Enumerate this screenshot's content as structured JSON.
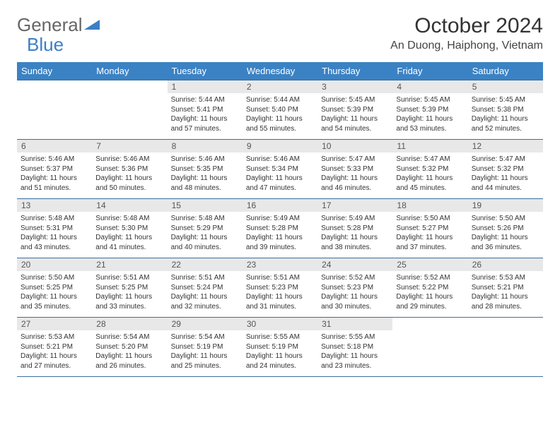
{
  "logo": {
    "text_general": "General",
    "text_blue": "Blue"
  },
  "header": {
    "month_title": "October 2024",
    "location": "An Duong, Haiphong, Vietnam"
  },
  "calendar": {
    "type": "table",
    "header_bg": "#3b82c4",
    "header_fg": "#ffffff",
    "daynum_bg": "#e8e8e8",
    "border_color": "#3b6fa0",
    "columns": [
      "Sunday",
      "Monday",
      "Tuesday",
      "Wednesday",
      "Thursday",
      "Friday",
      "Saturday"
    ],
    "weeks": [
      [
        {
          "day": "",
          "sunrise": "",
          "sunset": "",
          "daylight1": "",
          "daylight2": ""
        },
        {
          "day": "",
          "sunrise": "",
          "sunset": "",
          "daylight1": "",
          "daylight2": ""
        },
        {
          "day": "1",
          "sunrise": "Sunrise: 5:44 AM",
          "sunset": "Sunset: 5:41 PM",
          "daylight1": "Daylight: 11 hours",
          "daylight2": "and 57 minutes."
        },
        {
          "day": "2",
          "sunrise": "Sunrise: 5:44 AM",
          "sunset": "Sunset: 5:40 PM",
          "daylight1": "Daylight: 11 hours",
          "daylight2": "and 55 minutes."
        },
        {
          "day": "3",
          "sunrise": "Sunrise: 5:45 AM",
          "sunset": "Sunset: 5:39 PM",
          "daylight1": "Daylight: 11 hours",
          "daylight2": "and 54 minutes."
        },
        {
          "day": "4",
          "sunrise": "Sunrise: 5:45 AM",
          "sunset": "Sunset: 5:39 PM",
          "daylight1": "Daylight: 11 hours",
          "daylight2": "and 53 minutes."
        },
        {
          "day": "5",
          "sunrise": "Sunrise: 5:45 AM",
          "sunset": "Sunset: 5:38 PM",
          "daylight1": "Daylight: 11 hours",
          "daylight2": "and 52 minutes."
        }
      ],
      [
        {
          "day": "6",
          "sunrise": "Sunrise: 5:46 AM",
          "sunset": "Sunset: 5:37 PM",
          "daylight1": "Daylight: 11 hours",
          "daylight2": "and 51 minutes."
        },
        {
          "day": "7",
          "sunrise": "Sunrise: 5:46 AM",
          "sunset": "Sunset: 5:36 PM",
          "daylight1": "Daylight: 11 hours",
          "daylight2": "and 50 minutes."
        },
        {
          "day": "8",
          "sunrise": "Sunrise: 5:46 AM",
          "sunset": "Sunset: 5:35 PM",
          "daylight1": "Daylight: 11 hours",
          "daylight2": "and 48 minutes."
        },
        {
          "day": "9",
          "sunrise": "Sunrise: 5:46 AM",
          "sunset": "Sunset: 5:34 PM",
          "daylight1": "Daylight: 11 hours",
          "daylight2": "and 47 minutes."
        },
        {
          "day": "10",
          "sunrise": "Sunrise: 5:47 AM",
          "sunset": "Sunset: 5:33 PM",
          "daylight1": "Daylight: 11 hours",
          "daylight2": "and 46 minutes."
        },
        {
          "day": "11",
          "sunrise": "Sunrise: 5:47 AM",
          "sunset": "Sunset: 5:32 PM",
          "daylight1": "Daylight: 11 hours",
          "daylight2": "and 45 minutes."
        },
        {
          "day": "12",
          "sunrise": "Sunrise: 5:47 AM",
          "sunset": "Sunset: 5:32 PM",
          "daylight1": "Daylight: 11 hours",
          "daylight2": "and 44 minutes."
        }
      ],
      [
        {
          "day": "13",
          "sunrise": "Sunrise: 5:48 AM",
          "sunset": "Sunset: 5:31 PM",
          "daylight1": "Daylight: 11 hours",
          "daylight2": "and 43 minutes."
        },
        {
          "day": "14",
          "sunrise": "Sunrise: 5:48 AM",
          "sunset": "Sunset: 5:30 PM",
          "daylight1": "Daylight: 11 hours",
          "daylight2": "and 41 minutes."
        },
        {
          "day": "15",
          "sunrise": "Sunrise: 5:48 AM",
          "sunset": "Sunset: 5:29 PM",
          "daylight1": "Daylight: 11 hours",
          "daylight2": "and 40 minutes."
        },
        {
          "day": "16",
          "sunrise": "Sunrise: 5:49 AM",
          "sunset": "Sunset: 5:28 PM",
          "daylight1": "Daylight: 11 hours",
          "daylight2": "and 39 minutes."
        },
        {
          "day": "17",
          "sunrise": "Sunrise: 5:49 AM",
          "sunset": "Sunset: 5:28 PM",
          "daylight1": "Daylight: 11 hours",
          "daylight2": "and 38 minutes."
        },
        {
          "day": "18",
          "sunrise": "Sunrise: 5:50 AM",
          "sunset": "Sunset: 5:27 PM",
          "daylight1": "Daylight: 11 hours",
          "daylight2": "and 37 minutes."
        },
        {
          "day": "19",
          "sunrise": "Sunrise: 5:50 AM",
          "sunset": "Sunset: 5:26 PM",
          "daylight1": "Daylight: 11 hours",
          "daylight2": "and 36 minutes."
        }
      ],
      [
        {
          "day": "20",
          "sunrise": "Sunrise: 5:50 AM",
          "sunset": "Sunset: 5:25 PM",
          "daylight1": "Daylight: 11 hours",
          "daylight2": "and 35 minutes."
        },
        {
          "day": "21",
          "sunrise": "Sunrise: 5:51 AM",
          "sunset": "Sunset: 5:25 PM",
          "daylight1": "Daylight: 11 hours",
          "daylight2": "and 33 minutes."
        },
        {
          "day": "22",
          "sunrise": "Sunrise: 5:51 AM",
          "sunset": "Sunset: 5:24 PM",
          "daylight1": "Daylight: 11 hours",
          "daylight2": "and 32 minutes."
        },
        {
          "day": "23",
          "sunrise": "Sunrise: 5:51 AM",
          "sunset": "Sunset: 5:23 PM",
          "daylight1": "Daylight: 11 hours",
          "daylight2": "and 31 minutes."
        },
        {
          "day": "24",
          "sunrise": "Sunrise: 5:52 AM",
          "sunset": "Sunset: 5:23 PM",
          "daylight1": "Daylight: 11 hours",
          "daylight2": "and 30 minutes."
        },
        {
          "day": "25",
          "sunrise": "Sunrise: 5:52 AM",
          "sunset": "Sunset: 5:22 PM",
          "daylight1": "Daylight: 11 hours",
          "daylight2": "and 29 minutes."
        },
        {
          "day": "26",
          "sunrise": "Sunrise: 5:53 AM",
          "sunset": "Sunset: 5:21 PM",
          "daylight1": "Daylight: 11 hours",
          "daylight2": "and 28 minutes."
        }
      ],
      [
        {
          "day": "27",
          "sunrise": "Sunrise: 5:53 AM",
          "sunset": "Sunset: 5:21 PM",
          "daylight1": "Daylight: 11 hours",
          "daylight2": "and 27 minutes."
        },
        {
          "day": "28",
          "sunrise": "Sunrise: 5:54 AM",
          "sunset": "Sunset: 5:20 PM",
          "daylight1": "Daylight: 11 hours",
          "daylight2": "and 26 minutes."
        },
        {
          "day": "29",
          "sunrise": "Sunrise: 5:54 AM",
          "sunset": "Sunset: 5:19 PM",
          "daylight1": "Daylight: 11 hours",
          "daylight2": "and 25 minutes."
        },
        {
          "day": "30",
          "sunrise": "Sunrise: 5:55 AM",
          "sunset": "Sunset: 5:19 PM",
          "daylight1": "Daylight: 11 hours",
          "daylight2": "and 24 minutes."
        },
        {
          "day": "31",
          "sunrise": "Sunrise: 5:55 AM",
          "sunset": "Sunset: 5:18 PM",
          "daylight1": "Daylight: 11 hours",
          "daylight2": "and 23 minutes."
        },
        {
          "day": "",
          "sunrise": "",
          "sunset": "",
          "daylight1": "",
          "daylight2": ""
        },
        {
          "day": "",
          "sunrise": "",
          "sunset": "",
          "daylight1": "",
          "daylight2": ""
        }
      ]
    ]
  }
}
